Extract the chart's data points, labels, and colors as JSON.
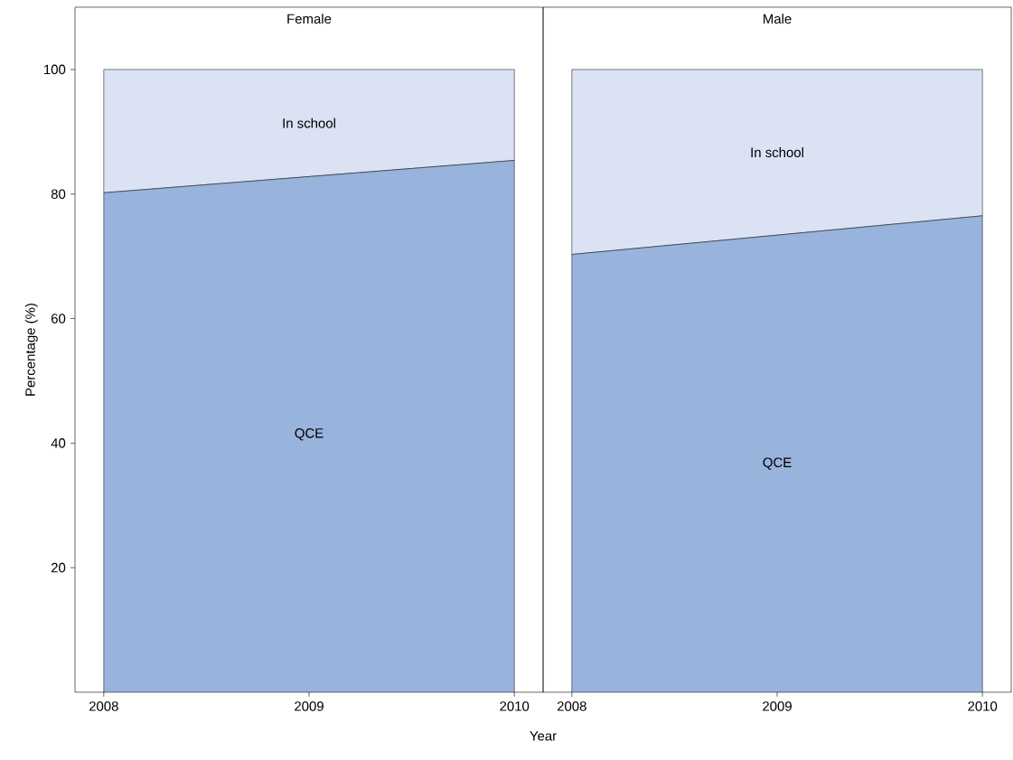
{
  "chart_data": [
    {
      "type": "area",
      "title": "Female",
      "ylabel": "Percentage (%)",
      "xlabel": "Year",
      "stacked": true,
      "x": [
        2008,
        2009,
        2010
      ],
      "xlim": [
        2007.86,
        2010.14
      ],
      "xticks": [
        2008,
        2009,
        2010
      ],
      "ylim": [
        0,
        110
      ],
      "yticks": [
        20,
        40,
        60,
        80,
        100
      ],
      "series": [
        {
          "name": "QCE",
          "color": "#98b3dc",
          "values": [
            80.2,
            82.8,
            85.4
          ]
        },
        {
          "name": "In school",
          "color": "#dae2f3",
          "values": [
            19.8,
            17.2,
            14.6
          ]
        }
      ]
    },
    {
      "type": "area",
      "title": "Male",
      "stacked": true,
      "x": [
        2008,
        2009,
        2010
      ],
      "xlim": [
        2007.86,
        2010.14
      ],
      "xticks": [
        2008,
        2009,
        2010
      ],
      "ylim": [
        0,
        110
      ],
      "tick_labels": "x",
      "series": [
        {
          "name": "QCE",
          "color": "#98b3dc",
          "values": [
            70.3,
            73.4,
            76.5
          ]
        },
        {
          "name": "In school",
          "color": "#dae2f3",
          "values": [
            29.7,
            26.6,
            23.5
          ]
        }
      ]
    }
  ]
}
